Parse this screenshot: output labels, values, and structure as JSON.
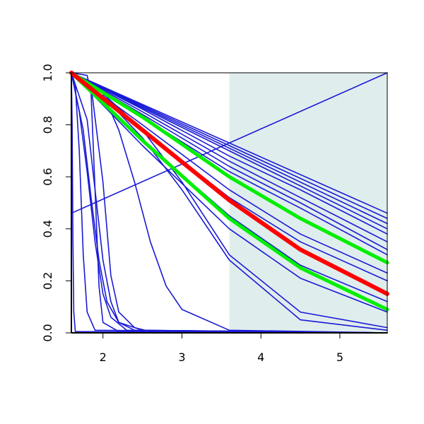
{
  "chart_data": {
    "type": "line",
    "title": "",
    "xlabel": "",
    "ylabel": "",
    "xlim": [
      1.6,
      5.6
    ],
    "ylim": [
      0.0,
      1.0
    ],
    "x_ticks": [
      2,
      3,
      4,
      5
    ],
    "x_tick_labels": [
      "2",
      "3",
      "4",
      "5"
    ],
    "y_ticks": [
      0.0,
      0.2,
      0.4,
      0.6,
      0.8,
      1.0
    ],
    "y_tick_labels": [
      "0.0",
      "0.2",
      "0.4",
      "0.6",
      "0.8",
      "1.0"
    ],
    "grid": false,
    "legend": "none",
    "shaded_region": {
      "x_start": 3.6,
      "x_end": 5.6,
      "color": "#e0eded"
    },
    "colors": {
      "blue": "#1a1ad6",
      "red": "#ff0000",
      "green": "#00ee00",
      "shade": "#e0eded"
    },
    "series": [
      {
        "color": "blue",
        "x": [
          1.6,
          5.6
        ],
        "y": [
          1.0,
          0.46
        ]
      },
      {
        "color": "blue",
        "x": [
          1.6,
          5.6
        ],
        "y": [
          1.0,
          0.44
        ]
      },
      {
        "color": "blue",
        "x": [
          1.6,
          5.6
        ],
        "y": [
          1.0,
          0.42
        ]
      },
      {
        "color": "blue",
        "x": [
          1.6,
          5.6
        ],
        "y": [
          1.0,
          0.4
        ]
      },
      {
        "color": "blue",
        "x": [
          1.6,
          2.5,
          3.6,
          4.5,
          5.6
        ],
        "y": [
          1.0,
          0.86,
          0.68,
          0.55,
          0.38
        ]
      },
      {
        "color": "blue",
        "x": [
          1.6,
          2.5,
          3.6,
          4.5,
          5.6
        ],
        "y": [
          1.0,
          0.85,
          0.66,
          0.52,
          0.35
        ]
      },
      {
        "color": "blue",
        "x": [
          1.6,
          2.5,
          3.6,
          4.5,
          5.6
        ],
        "y": [
          1.0,
          0.84,
          0.64,
          0.5,
          0.32
        ]
      },
      {
        "color": "blue",
        "x": [
          1.6,
          2.5,
          3.6,
          4.5,
          5.6
        ],
        "y": [
          1.0,
          0.83,
          0.62,
          0.48,
          0.3
        ]
      },
      {
        "color": "blue",
        "x": [
          1.6,
          2.5,
          3.6,
          4.5,
          5.6
        ],
        "y": [
          1.0,
          0.8,
          0.55,
          0.38,
          0.23
        ]
      },
      {
        "color": "blue",
        "x": [
          1.6,
          2.5,
          3.6,
          4.5,
          5.6
        ],
        "y": [
          1.0,
          0.78,
          0.52,
          0.35,
          0.2
        ]
      },
      {
        "color": "blue",
        "x": [
          1.6,
          2.5,
          3.6,
          4.5,
          5.6
        ],
        "y": [
          1.0,
          0.74,
          0.45,
          0.26,
          0.12
        ]
      },
      {
        "color": "blue",
        "x": [
          1.6,
          2.5,
          3.6,
          4.5,
          5.6
        ],
        "y": [
          1.0,
          0.72,
          0.4,
          0.21,
          0.08
        ]
      },
      {
        "color": "blue",
        "x": [
          1.6,
          2.0,
          2.5,
          3.0,
          3.6,
          4.5,
          5.6
        ],
        "y": [
          1.0,
          0.92,
          0.78,
          0.58,
          0.3,
          0.08,
          0.02
        ]
      },
      {
        "color": "blue",
        "x": [
          1.6,
          2.0,
          2.5,
          3.0,
          3.6,
          4.5,
          5.6
        ],
        "y": [
          1.0,
          0.91,
          0.75,
          0.55,
          0.28,
          0.05,
          0.01
        ]
      },
      {
        "color": "blue",
        "x": [
          1.6,
          2.0,
          2.2,
          2.4,
          2.6,
          2.8,
          3.0,
          3.6,
          5.6
        ],
        "y": [
          1.0,
          0.92,
          0.78,
          0.58,
          0.35,
          0.18,
          0.09,
          0.01,
          0.0
        ]
      },
      {
        "color": "blue",
        "x": [
          1.6,
          1.85,
          2.0,
          2.1,
          2.2,
          2.4,
          2.6,
          5.6
        ],
        "y": [
          1.0,
          0.95,
          0.58,
          0.22,
          0.08,
          0.02,
          0.005,
          0.0
        ]
      },
      {
        "color": "blue",
        "x": [
          1.6,
          1.8,
          1.9,
          2.0,
          2.1,
          2.2,
          2.4,
          5.6
        ],
        "y": [
          1.0,
          0.82,
          0.55,
          0.28,
          0.12,
          0.04,
          0.01,
          0.0
        ]
      },
      {
        "color": "blue",
        "x": [
          1.6,
          1.7,
          1.8,
          1.9,
          2.0,
          2.1,
          2.3,
          5.6
        ],
        "y": [
          1.0,
          0.85,
          0.62,
          0.35,
          0.15,
          0.06,
          0.01,
          0.0
        ]
      },
      {
        "color": "blue",
        "x": [
          1.6,
          1.75,
          1.85,
          1.95,
          2.05,
          2.2,
          2.5,
          5.6
        ],
        "y": [
          1.0,
          0.78,
          0.52,
          0.28,
          0.12,
          0.04,
          0.01,
          0.0
        ]
      },
      {
        "color": "blue",
        "x": [
          1.6,
          1.8,
          1.85,
          1.9,
          1.95,
          2.0,
          2.2,
          5.6
        ],
        "y": [
          1.0,
          0.99,
          0.92,
          0.55,
          0.18,
          0.04,
          0.005,
          0.0
        ]
      },
      {
        "color": "blue",
        "x": [
          1.6,
          1.65,
          1.7,
          1.75,
          1.8,
          1.9,
          5.6
        ],
        "y": [
          1.0,
          0.95,
          0.7,
          0.3,
          0.08,
          0.01,
          0.0
        ]
      },
      {
        "color": "blue",
        "x": [
          1.6,
          1.61,
          1.62,
          1.63,
          1.65,
          5.6
        ],
        "y": [
          1.0,
          0.8,
          0.35,
          0.08,
          0.005,
          0.0
        ]
      },
      {
        "color": "blue",
        "x": [
          1.6,
          5.6
        ],
        "y": [
          0.46,
          1.0
        ]
      },
      {
        "color": "green",
        "x": [
          1.6,
          2.5,
          3.6,
          4.5,
          5.6
        ],
        "y": [
          1.0,
          0.83,
          0.6,
          0.44,
          0.27
        ]
      },
      {
        "color": "green",
        "x": [
          1.6,
          2.5,
          3.6,
          4.5,
          5.6
        ],
        "y": [
          1.0,
          0.74,
          0.44,
          0.25,
          0.09
        ]
      },
      {
        "color": "red",
        "x": [
          1.6,
          2.5,
          3.6,
          4.5,
          5.6
        ],
        "y": [
          1.0,
          0.78,
          0.51,
          0.32,
          0.15
        ]
      }
    ]
  }
}
